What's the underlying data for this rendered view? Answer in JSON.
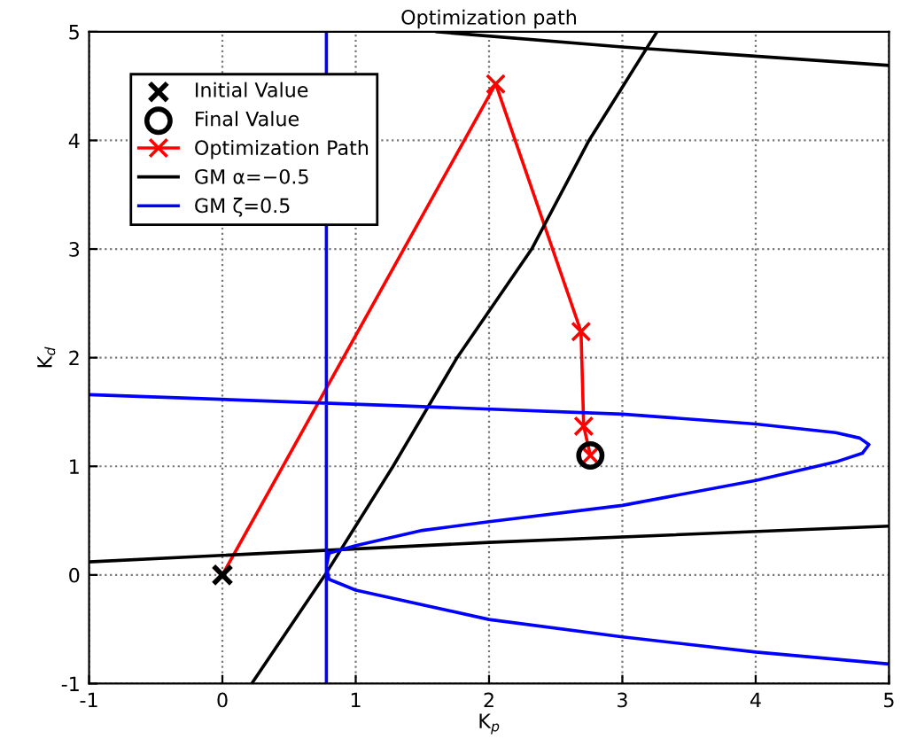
{
  "chart_data": {
    "type": "line",
    "title": "Optimization path",
    "xlabel": "K$_{p}$",
    "ylabel": "K$_{d}$",
    "xlim": [
      -1,
      5
    ],
    "ylim": [
      -1,
      5
    ],
    "xticks": [
      -1,
      0,
      1,
      2,
      3,
      4,
      5
    ],
    "yticks": [
      -1,
      0,
      1,
      2,
      3,
      4,
      5
    ],
    "grid": true,
    "legend": "top left",
    "series": [
      {
        "name": "Initial Value",
        "type": "scatter",
        "marker": "cross",
        "color": "#000000",
        "x": [
          0
        ],
        "values": [
          0
        ]
      },
      {
        "name": "Final Value",
        "type": "scatter",
        "marker": "circle",
        "color": "#000000",
        "x": [
          2.76
        ],
        "values": [
          1.1
        ]
      },
      {
        "name": "Optimization Path",
        "marker": "cross",
        "color": "#ff0000",
        "x": [
          0,
          2.05,
          2.69,
          2.71,
          2.76
        ],
        "values": [
          0,
          4.52,
          2.24,
          1.37,
          1.1
        ]
      },
      {
        "name": "GM α=−0.5",
        "marker": "none",
        "color": "#000000",
        "x": [
          0.22,
          0.77,
          1.28,
          1.76,
          2.32,
          2.75,
          3.26,
          null,
          -1,
          2,
          5,
          null,
          1.61,
          3,
          5
        ],
        "values": [
          -1,
          0,
          1,
          2,
          3,
          4,
          5,
          null,
          0.12,
          0.3,
          0.45,
          null,
          5,
          4.86,
          4.69
        ]
      },
      {
        "name": "GM ζ=0.5",
        "marker": "none",
        "color": "#0000ff",
        "x": [
          -1,
          1.5,
          3,
          4,
          4.6,
          4.78,
          4.85,
          4.8,
          4.6,
          4,
          3,
          2,
          1.5,
          1,
          0.8,
          0.78,
          0.8,
          1,
          2,
          3,
          4,
          5,
          null,
          0.78,
          0.78
        ],
        "values": [
          1.66,
          1.55,
          1.48,
          1.39,
          1.31,
          1.26,
          1.2,
          1.12,
          1.04,
          0.87,
          0.64,
          0.49,
          0.41,
          0.27,
          0.2,
          0.08,
          -0.04,
          -0.14,
          -0.41,
          -0.57,
          -0.71,
          -0.82,
          null,
          -1,
          5
        ]
      }
    ]
  }
}
